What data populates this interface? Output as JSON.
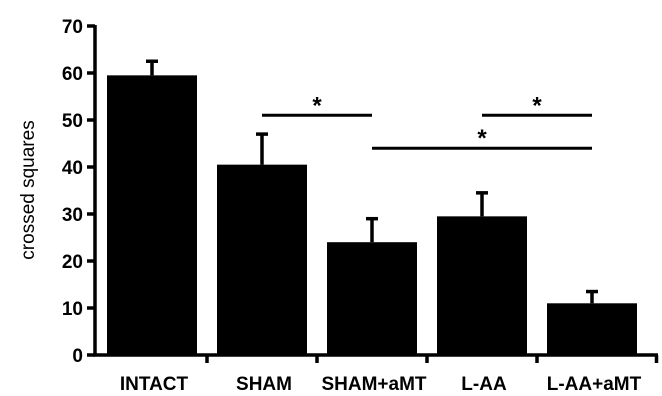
{
  "chart_data": {
    "type": "bar",
    "title": "",
    "xlabel": "",
    "ylabel": "crossed squares",
    "ylim": [
      0,
      70
    ],
    "yticks": [
      0,
      10,
      20,
      30,
      40,
      50,
      60,
      70
    ],
    "categories": [
      "INTACT",
      "SHAM",
      "SHAM+aMT",
      "L-AA",
      "L-AA+aMT"
    ],
    "values": [
      59.5,
      40.5,
      24,
      29.5,
      11
    ],
    "error_upper": [
      3,
      6.5,
      5,
      5,
      2.5
    ],
    "bar_color": "#000000",
    "grid": false,
    "significance": [
      {
        "from": "SHAM",
        "to": "SHAM+aMT",
        "label": "*",
        "y": 51
      },
      {
        "from": "L-AA",
        "to": "L-AA+aMT",
        "label": "*",
        "y": 51
      },
      {
        "from": "SHAM+aMT",
        "to": "L-AA+aMT",
        "label": "*",
        "y": 44
      }
    ]
  }
}
